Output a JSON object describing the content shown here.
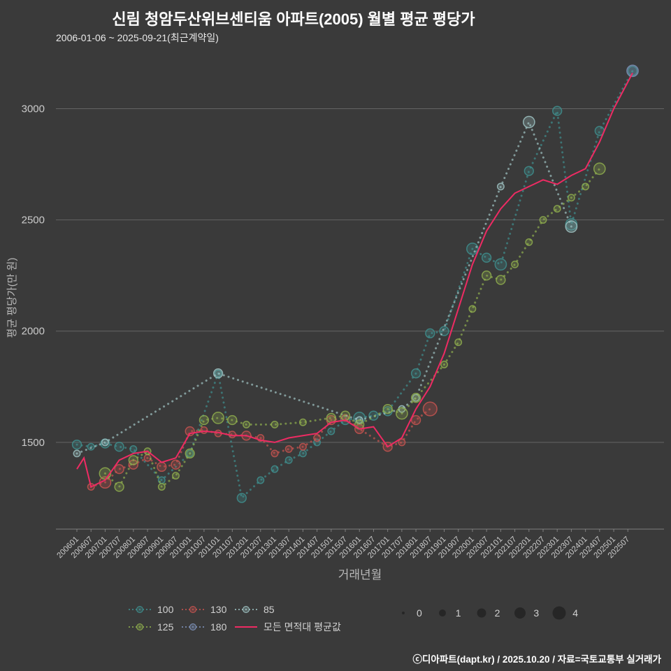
{
  "title": "신림 청암두산위브센티움 아파트(2005) 월별 평균 평당가",
  "subtitle": "2006-01-06 ~ 2025-09-21(최근계약일)",
  "footer": "ⓒ디아파트(dapt.kr) / 2025.10.20 / 자료=국토교통부 실거래가",
  "colors": {
    "background": "#3a3a3a",
    "title": "#ffffff",
    "axis": "#b9b9b9",
    "tick": "#cbcbcb",
    "grid": "#9a9a9a",
    "size_dot": "#262626",
    "footer": "#ffffff"
  },
  "legend": {
    "rows": [
      [
        {
          "label": "100",
          "color": "#3f8f8e",
          "style": "dotted"
        },
        {
          "label": "130",
          "color": "#c75450",
          "style": "dotted"
        },
        {
          "label": "85",
          "color": "#9fc3c3",
          "style": "dotted"
        }
      ],
      [
        {
          "label": "125",
          "color": "#8fae4e",
          "style": "dotted"
        },
        {
          "label": "180",
          "color": "#7f93bb",
          "style": "dotted"
        },
        {
          "label": "모든 면적대 평균값",
          "color": "#ee2b63",
          "style": "line"
        }
      ]
    ],
    "sizes": [
      "0",
      "1",
      "2",
      "3",
      "4"
    ]
  },
  "chart_data": {
    "type": "scatter",
    "title": "신림 청암두산위브센티움 아파트(2005) 월별 평균 평당가",
    "xlabel": "거래년월",
    "ylabel": "평균 평당가(만 원)",
    "ylim": [
      1110,
      3190
    ],
    "yticks": [
      1500,
      2000,
      2500,
      3000
    ],
    "xticks": [
      200601,
      200607,
      200701,
      200707,
      200801,
      200807,
      200901,
      200907,
      201001,
      201007,
      201101,
      201107,
      201201,
      201207,
      201301,
      201307,
      201401,
      201407,
      201501,
      201507,
      201601,
      201607,
      201701,
      201707,
      201801,
      201807,
      201901,
      201907,
      202001,
      202007,
      202101,
      202107,
      202201,
      202207,
      202301,
      202307,
      202401,
      202407,
      202501,
      202507
    ],
    "grid": "horizontal",
    "legend_position": "bottom",
    "series": [
      {
        "name": "100",
        "color": "#3f8f8e",
        "style": "dotted",
        "points": [
          [
            200601,
            1490,
            2
          ],
          [
            200607,
            1480,
            1
          ],
          [
            200701,
            1495,
            2
          ],
          [
            200707,
            1480,
            2
          ],
          [
            200801,
            1470,
            1
          ],
          [
            200901,
            1330,
            1
          ],
          [
            201001,
            1450,
            1
          ],
          [
            201101,
            1810,
            1
          ],
          [
            201111,
            1250,
            2
          ],
          [
            201207,
            1330,
            1
          ],
          [
            201301,
            1380,
            1
          ],
          [
            201307,
            1420,
            1
          ],
          [
            201401,
            1450,
            1
          ],
          [
            201407,
            1500,
            1
          ],
          [
            201501,
            1550,
            1
          ],
          [
            201507,
            1600,
            2
          ],
          [
            201601,
            1610,
            3
          ],
          [
            201607,
            1620,
            2
          ],
          [
            201701,
            1640,
            2
          ],
          [
            201801,
            1810,
            2
          ],
          [
            201807,
            1990,
            2
          ],
          [
            201901,
            2000,
            2
          ],
          [
            202001,
            2370,
            3
          ],
          [
            202007,
            2330,
            2
          ],
          [
            202101,
            2300,
            3
          ],
          [
            202201,
            2720,
            2
          ],
          [
            202301,
            2990,
            2
          ],
          [
            202307,
            2480,
            3
          ],
          [
            202407,
            2900,
            2
          ],
          [
            202509,
            3170,
            2
          ]
        ]
      },
      {
        "name": "130",
        "color": "#c75450",
        "style": "dotted",
        "points": [
          [
            200607,
            1300,
            1
          ],
          [
            200701,
            1320,
            3
          ],
          [
            200707,
            1380,
            2
          ],
          [
            200801,
            1400,
            2
          ],
          [
            200807,
            1430,
            1
          ],
          [
            200901,
            1390,
            2
          ],
          [
            200907,
            1400,
            2
          ],
          [
            201001,
            1550,
            2
          ],
          [
            201007,
            1555,
            1
          ],
          [
            201101,
            1540,
            1
          ],
          [
            201107,
            1535,
            1
          ],
          [
            201201,
            1530,
            2
          ],
          [
            201207,
            1520,
            1
          ],
          [
            201301,
            1450,
            1
          ],
          [
            201307,
            1470,
            1
          ],
          [
            201401,
            1480,
            1
          ],
          [
            201407,
            1520,
            1
          ],
          [
            201501,
            1600,
            2
          ],
          [
            201507,
            1610,
            1
          ],
          [
            201601,
            1560,
            2
          ],
          [
            201701,
            1480,
            2
          ],
          [
            201707,
            1500,
            1
          ],
          [
            201801,
            1600,
            2
          ],
          [
            201807,
            1650,
            4
          ]
        ]
      },
      {
        "name": "85",
        "color": "#9fc3c3",
        "style": "dotted",
        "points": [
          [
            200601,
            1450,
            1
          ],
          [
            200701,
            1500,
            1
          ],
          [
            201101,
            1810,
            2
          ],
          [
            201601,
            1600,
            1
          ],
          [
            201707,
            1650,
            1
          ],
          [
            201801,
            1700,
            1
          ],
          [
            202101,
            2650,
            1
          ],
          [
            202201,
            2940,
            3
          ],
          [
            202307,
            2470,
            3
          ]
        ]
      },
      {
        "name": "125",
        "color": "#8fae4e",
        "style": "dotted",
        "points": [
          [
            200701,
            1360,
            3
          ],
          [
            200707,
            1300,
            2
          ],
          [
            200801,
            1420,
            2
          ],
          [
            200807,
            1460,
            1
          ],
          [
            200901,
            1300,
            1
          ],
          [
            200907,
            1350,
            1
          ],
          [
            201001,
            1450,
            2
          ],
          [
            201007,
            1600,
            2
          ],
          [
            201101,
            1610,
            3
          ],
          [
            201107,
            1600,
            2
          ],
          [
            201201,
            1580,
            1
          ],
          [
            201301,
            1580,
            1
          ],
          [
            201401,
            1590,
            1
          ],
          [
            201501,
            1610,
            2
          ],
          [
            201507,
            1620,
            2
          ],
          [
            201601,
            1580,
            2
          ],
          [
            201701,
            1650,
            2
          ],
          [
            201707,
            1630,
            3
          ],
          [
            201801,
            1700,
            2
          ],
          [
            201901,
            1850,
            1
          ],
          [
            201907,
            1950,
            1
          ],
          [
            202001,
            2100,
            1
          ],
          [
            202007,
            2250,
            2
          ],
          [
            202101,
            2230,
            2
          ],
          [
            202107,
            2300,
            1
          ],
          [
            202201,
            2400,
            1
          ],
          [
            202207,
            2500,
            1
          ],
          [
            202301,
            2550,
            1
          ],
          [
            202307,
            2600,
            1
          ],
          [
            202401,
            2650,
            1
          ],
          [
            202407,
            2730,
            3
          ]
        ]
      },
      {
        "name": "180",
        "color": "#7f93bb",
        "style": "dotted",
        "points": [
          [
            202509,
            3170,
            3
          ]
        ]
      },
      {
        "name": "모든 면적대 평균값",
        "color": "#ee2b63",
        "style": "line",
        "points": [
          [
            200601,
            1380
          ],
          [
            200604,
            1430
          ],
          [
            200607,
            1300
          ],
          [
            200701,
            1330
          ],
          [
            200707,
            1420
          ],
          [
            200801,
            1450
          ],
          [
            200807,
            1460
          ],
          [
            200901,
            1410
          ],
          [
            200907,
            1430
          ],
          [
            201001,
            1540
          ],
          [
            201007,
            1550
          ],
          [
            201101,
            1545
          ],
          [
            201107,
            1530
          ],
          [
            201201,
            1530
          ],
          [
            201207,
            1510
          ],
          [
            201301,
            1500
          ],
          [
            201307,
            1520
          ],
          [
            201401,
            1530
          ],
          [
            201407,
            1540
          ],
          [
            201501,
            1590
          ],
          [
            201507,
            1600
          ],
          [
            201601,
            1560
          ],
          [
            201607,
            1570
          ],
          [
            201701,
            1480
          ],
          [
            201707,
            1520
          ],
          [
            201801,
            1650
          ],
          [
            201807,
            1750
          ],
          [
            201901,
            1900
          ],
          [
            201907,
            2100
          ],
          [
            202001,
            2300
          ],
          [
            202007,
            2450
          ],
          [
            202101,
            2550
          ],
          [
            202107,
            2620
          ],
          [
            202201,
            2650
          ],
          [
            202207,
            2680
          ],
          [
            202301,
            2660
          ],
          [
            202307,
            2700
          ],
          [
            202401,
            2730
          ],
          [
            202407,
            2850
          ],
          [
            202501,
            3000
          ],
          [
            202509,
            3160
          ]
        ]
      }
    ]
  }
}
